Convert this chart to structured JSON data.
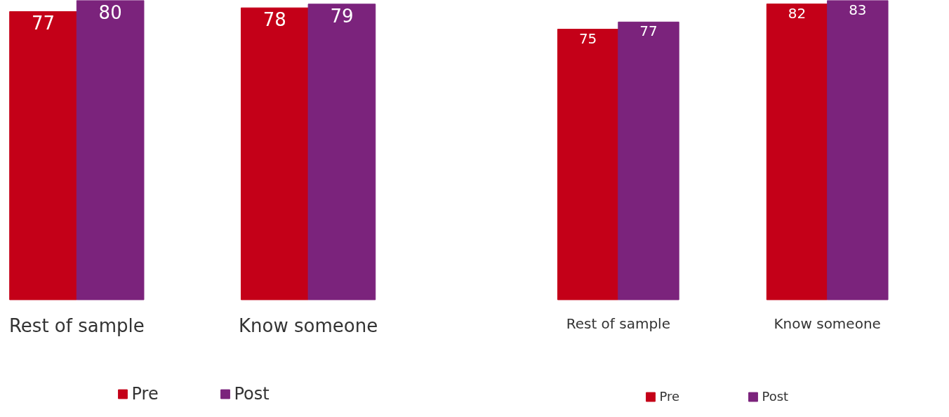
{
  "chart_data": [
    {
      "type": "bar",
      "categories": [
        "Rest of sample",
        "Know someone"
      ],
      "data_labels": true,
      "legend": "bottom",
      "grid": false,
      "series": [
        {
          "name": "Pre",
          "color": "#c40018",
          "values": [
            77,
            78
          ]
        },
        {
          "name": "Post",
          "color": "#7b237c",
          "values": [
            80,
            79
          ]
        }
      ]
    },
    {
      "type": "bar",
      "categories": [
        "Rest of sample",
        "Know someone"
      ],
      "data_labels": true,
      "legend": "bottom",
      "grid": false,
      "series": [
        {
          "name": "Pre",
          "color": "#c40018",
          "values": [
            75,
            82
          ]
        },
        {
          "name": "Post",
          "color": "#7b237c",
          "values": [
            77,
            83
          ]
        }
      ]
    }
  ]
}
